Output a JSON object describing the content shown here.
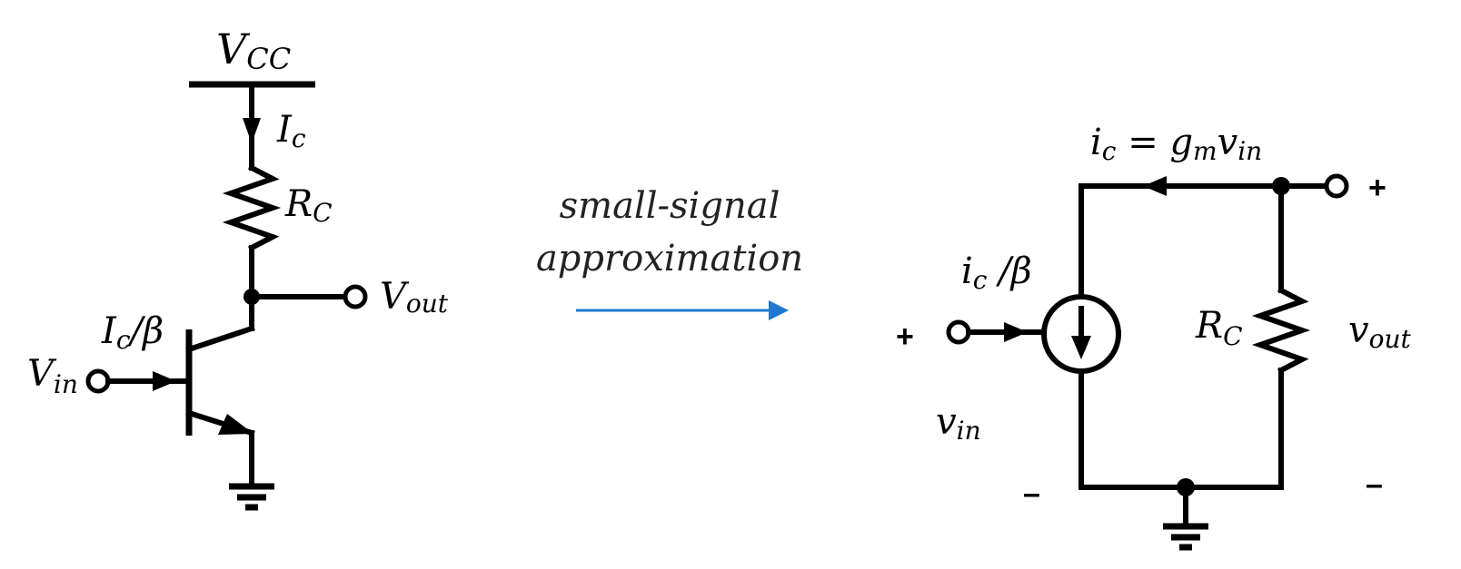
{
  "left_circuit": {
    "vcc": {
      "main": "V",
      "sub": "CC"
    },
    "collector_current": {
      "main": "I",
      "sub": "c"
    },
    "collector_resistor": {
      "main": "R",
      "sub": "C"
    },
    "output": {
      "main": "V",
      "sub": "out"
    },
    "base_current": {
      "main": "I",
      "sub": "c",
      "rest": "/β"
    },
    "input": {
      "main": "V",
      "sub": "in"
    }
  },
  "transform": {
    "line1": "small-signal",
    "line2": "approximation",
    "arrow_color": "#1f77d0"
  },
  "right_circuit": {
    "equation": {
      "i": "i",
      "i_sub": "c",
      "eq": " = ",
      "g": "g",
      "g_sub": "m",
      "v": "v",
      "v_sub": "in"
    },
    "source_label": {
      "main": "i",
      "sub": "c",
      "rest": " /β"
    },
    "resistor": {
      "main": "R",
      "sub": "C"
    },
    "output": {
      "main": "v",
      "sub": "out"
    },
    "input": {
      "main": "v",
      "sub": "in"
    },
    "plus_out": "+",
    "plus_in": "+",
    "minus_in": "–",
    "minus_out": "–"
  }
}
